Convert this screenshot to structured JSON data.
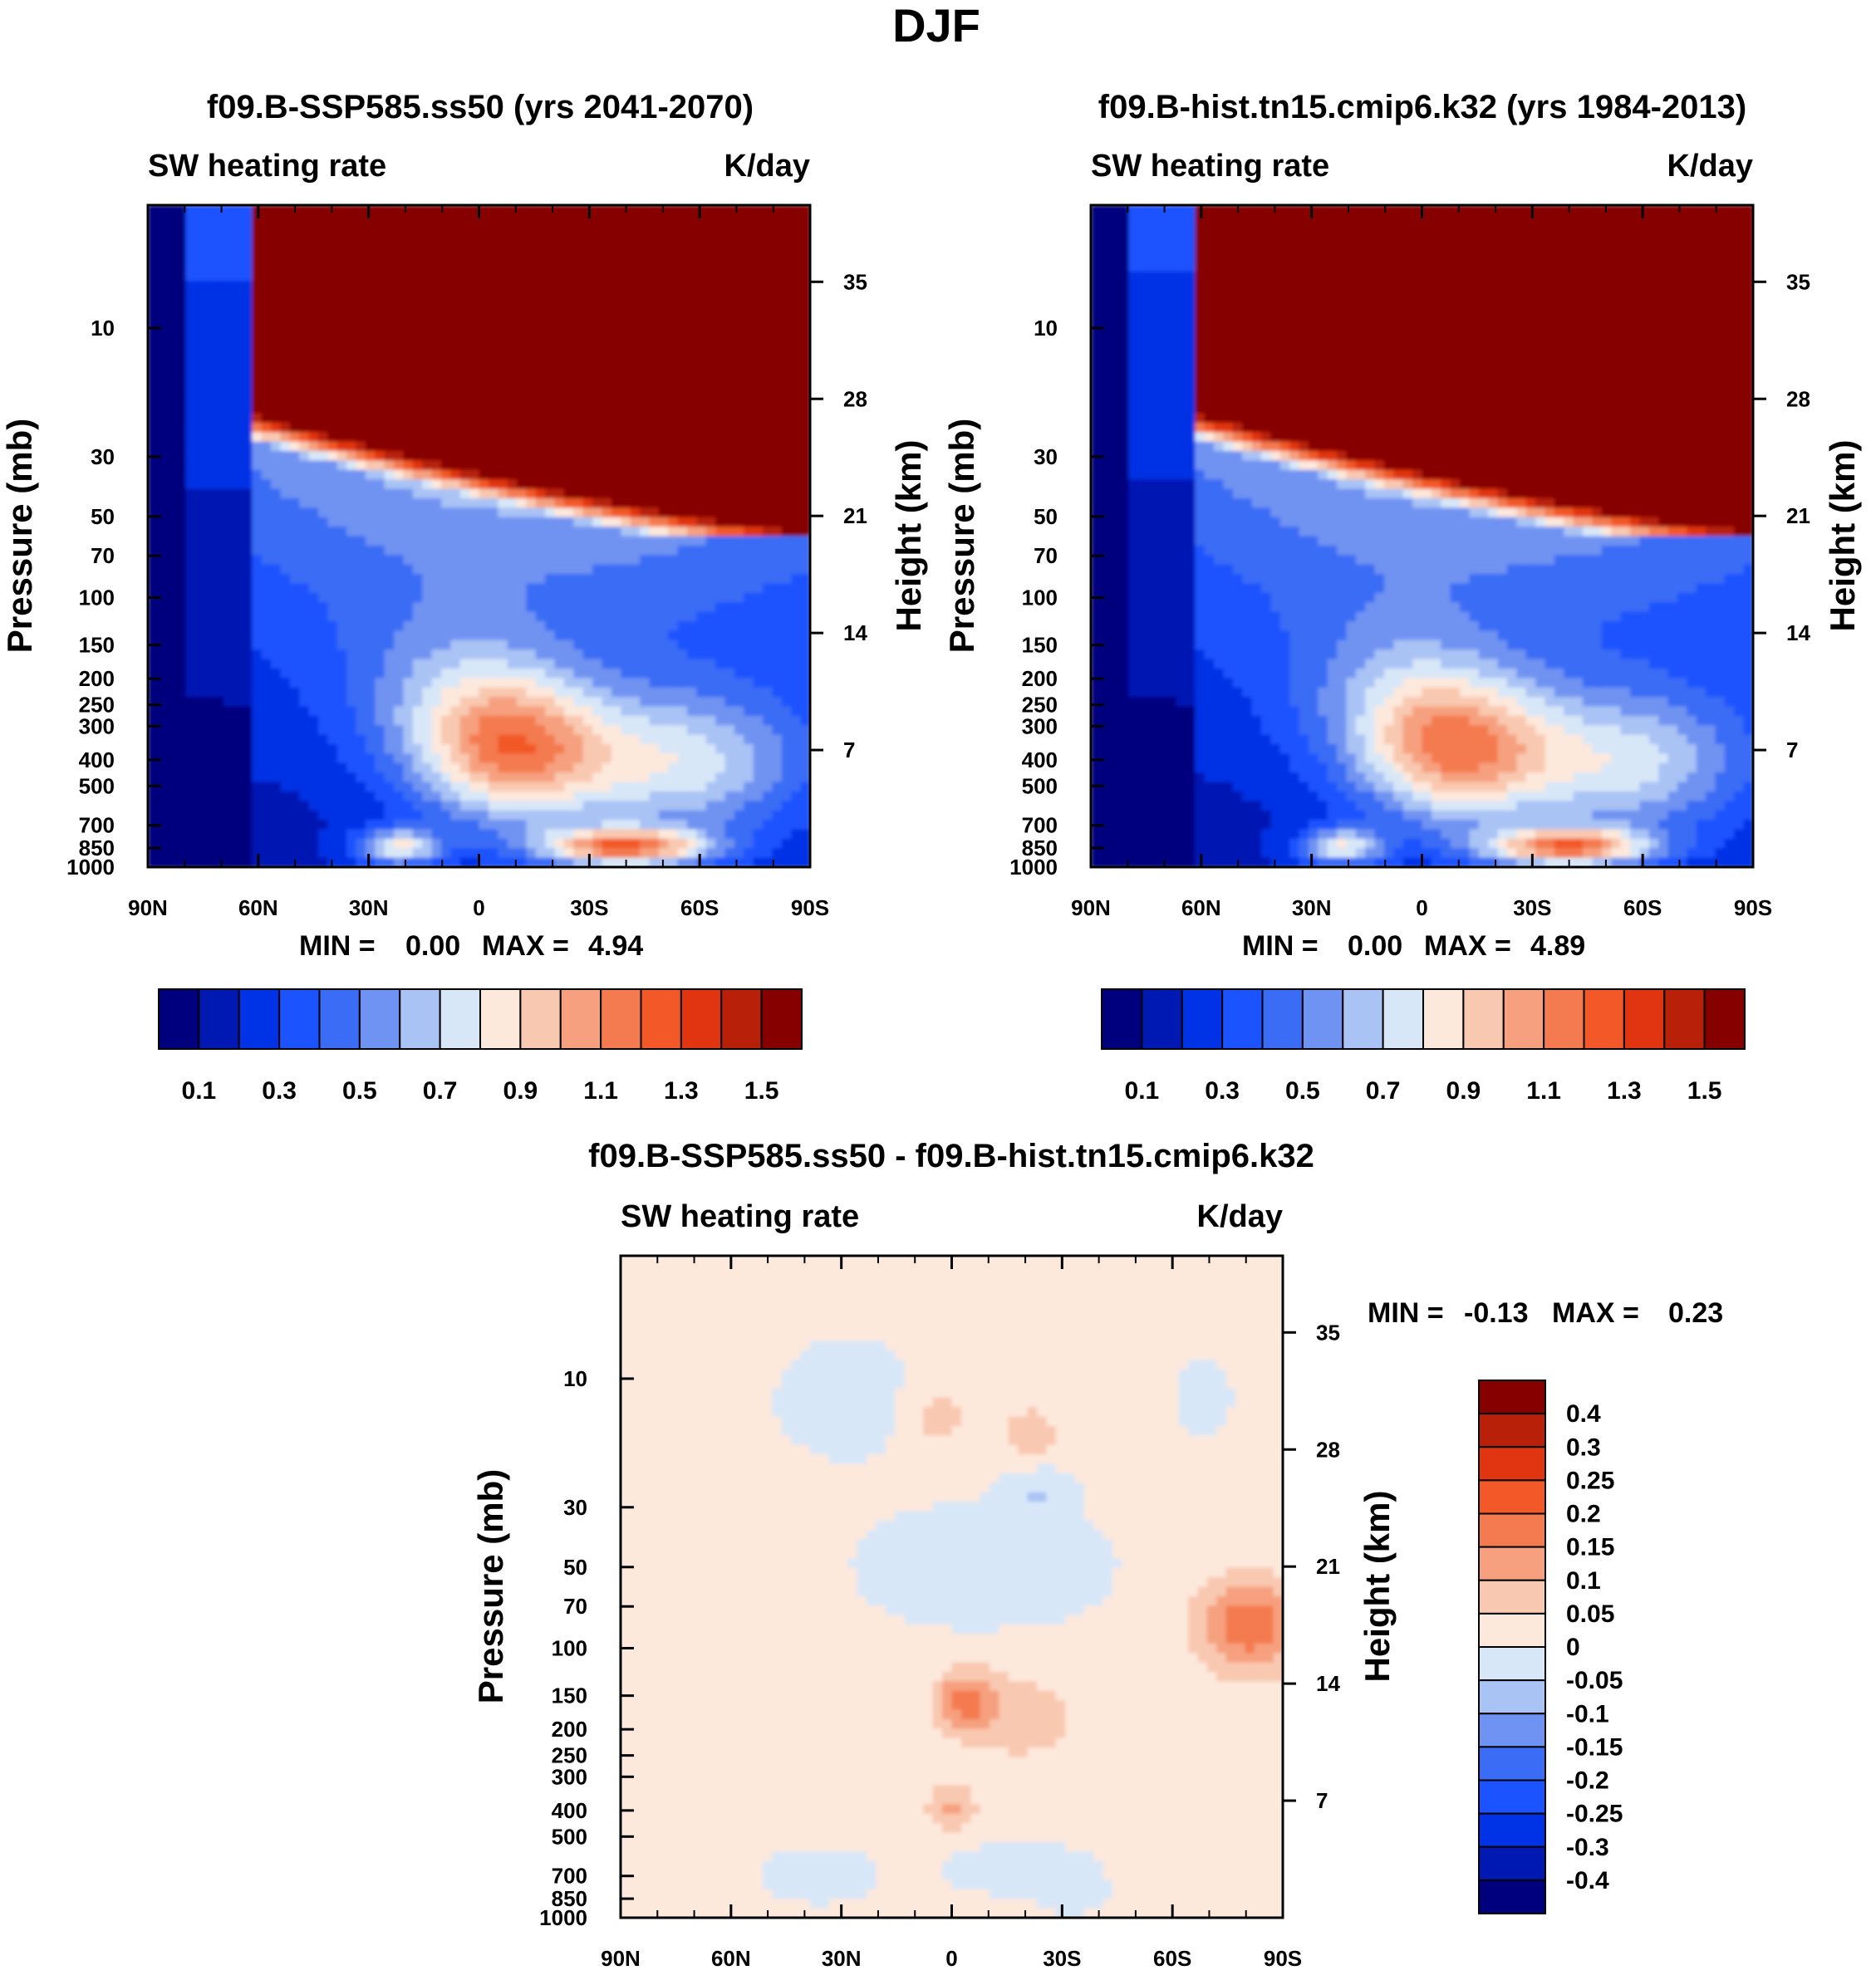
{
  "page_title": "DJF",
  "colors": {
    "abs_scale": [
      "#00007f",
      "#0019b2",
      "#0033e5",
      "#1a53ff",
      "#3a6cf5",
      "#6f93f2",
      "#a9c3f5",
      "#d8e7f8",
      "#fde8dc",
      "#f9c8b0",
      "#f6a07f",
      "#f47a4f",
      "#f25828",
      "#e03510",
      "#b8200a",
      "#870000"
    ],
    "diff_scale": [
      "#00007f",
      "#0019b2",
      "#0033e5",
      "#1a53ff",
      "#3a6cf5",
      "#6f93f2",
      "#a9c3f5",
      "#d8e7f8",
      "#fde8dc",
      "#f9c8b0",
      "#f6a07f",
      "#f47a4f",
      "#f25828",
      "#e03510",
      "#b8200a",
      "#870000"
    ]
  },
  "chart_data": [
    {
      "id": "left",
      "type": "heatmap",
      "title": "f09.B-SSP585.ss50 (yrs 2041-2070)",
      "left_label": "SW heating rate",
      "right_label": "K/day",
      "xlabel": "",
      "ylabel": "Pressure (mb)",
      "y2label": "Height (km)",
      "x_ticks": [
        "90N",
        "60N",
        "30N",
        "0",
        "30S",
        "60S",
        "90S"
      ],
      "y_ticks": [
        "10",
        "30",
        "50",
        "70",
        "100",
        "150",
        "200",
        "250",
        "300",
        "400",
        "500",
        "700",
        "850",
        "1000"
      ],
      "y2_ticks": [
        "35",
        "28",
        "21",
        "14",
        "7"
      ],
      "stats": {
        "min_label": "MIN =",
        "min": "0.00",
        "max_label": "MAX =",
        "max": "4.94"
      },
      "colorbar_labels": [
        "0.1",
        "0.3",
        "0.5",
        "0.7",
        "0.9",
        "1.1",
        "1.3",
        "1.5"
      ],
      "value_range": [
        0,
        4.94
      ]
    },
    {
      "id": "right",
      "type": "heatmap",
      "title": "f09.B-hist.tn15.cmip6.k32 (yrs 1984-2013)",
      "left_label": "SW heating rate",
      "right_label": "K/day",
      "xlabel": "",
      "ylabel": "Pressure (mb)",
      "y2label": "Height (km)",
      "x_ticks": [
        "90N",
        "60N",
        "30N",
        "0",
        "30S",
        "60S",
        "90S"
      ],
      "y_ticks": [
        "10",
        "30",
        "50",
        "70",
        "100",
        "150",
        "200",
        "250",
        "300",
        "400",
        "500",
        "700",
        "850",
        "1000"
      ],
      "y2_ticks": [
        "35",
        "28",
        "21",
        "14",
        "7"
      ],
      "stats": {
        "min_label": "MIN =",
        "min": "0.00",
        "max_label": "MAX =",
        "max": "4.89"
      },
      "colorbar_labels": [
        "0.1",
        "0.3",
        "0.5",
        "0.7",
        "0.9",
        "1.1",
        "1.3",
        "1.5"
      ],
      "value_range": [
        0,
        4.89
      ]
    },
    {
      "id": "diff",
      "type": "heatmap",
      "title": "f09.B-SSP585.ss50 - f09.B-hist.tn15.cmip6.k32",
      "left_label": "SW heating rate",
      "right_label": "K/day",
      "xlabel": "",
      "ylabel": "Pressure (mb)",
      "y2label": "Height (km)",
      "x_ticks": [
        "90N",
        "60N",
        "30N",
        "0",
        "30S",
        "60S",
        "90S"
      ],
      "y_ticks": [
        "10",
        "30",
        "50",
        "70",
        "100",
        "150",
        "200",
        "250",
        "300",
        "400",
        "500",
        "700",
        "850",
        "1000"
      ],
      "y2_ticks": [
        "35",
        "28",
        "21",
        "14",
        "7"
      ],
      "stats": {
        "min_label": "MIN =",
        "min": "-0.13",
        "max_label": "MAX =",
        "max": "0.23"
      },
      "colorbar_labels": [
        "0.4",
        "0.3",
        "0.25",
        "0.2",
        "0.15",
        "0.1",
        "0.05",
        "0",
        "-0.05",
        "-0.1",
        "-0.15",
        "-0.2",
        "-0.25",
        "-0.3",
        "-0.4"
      ],
      "value_range": [
        -0.13,
        0.23
      ]
    }
  ]
}
